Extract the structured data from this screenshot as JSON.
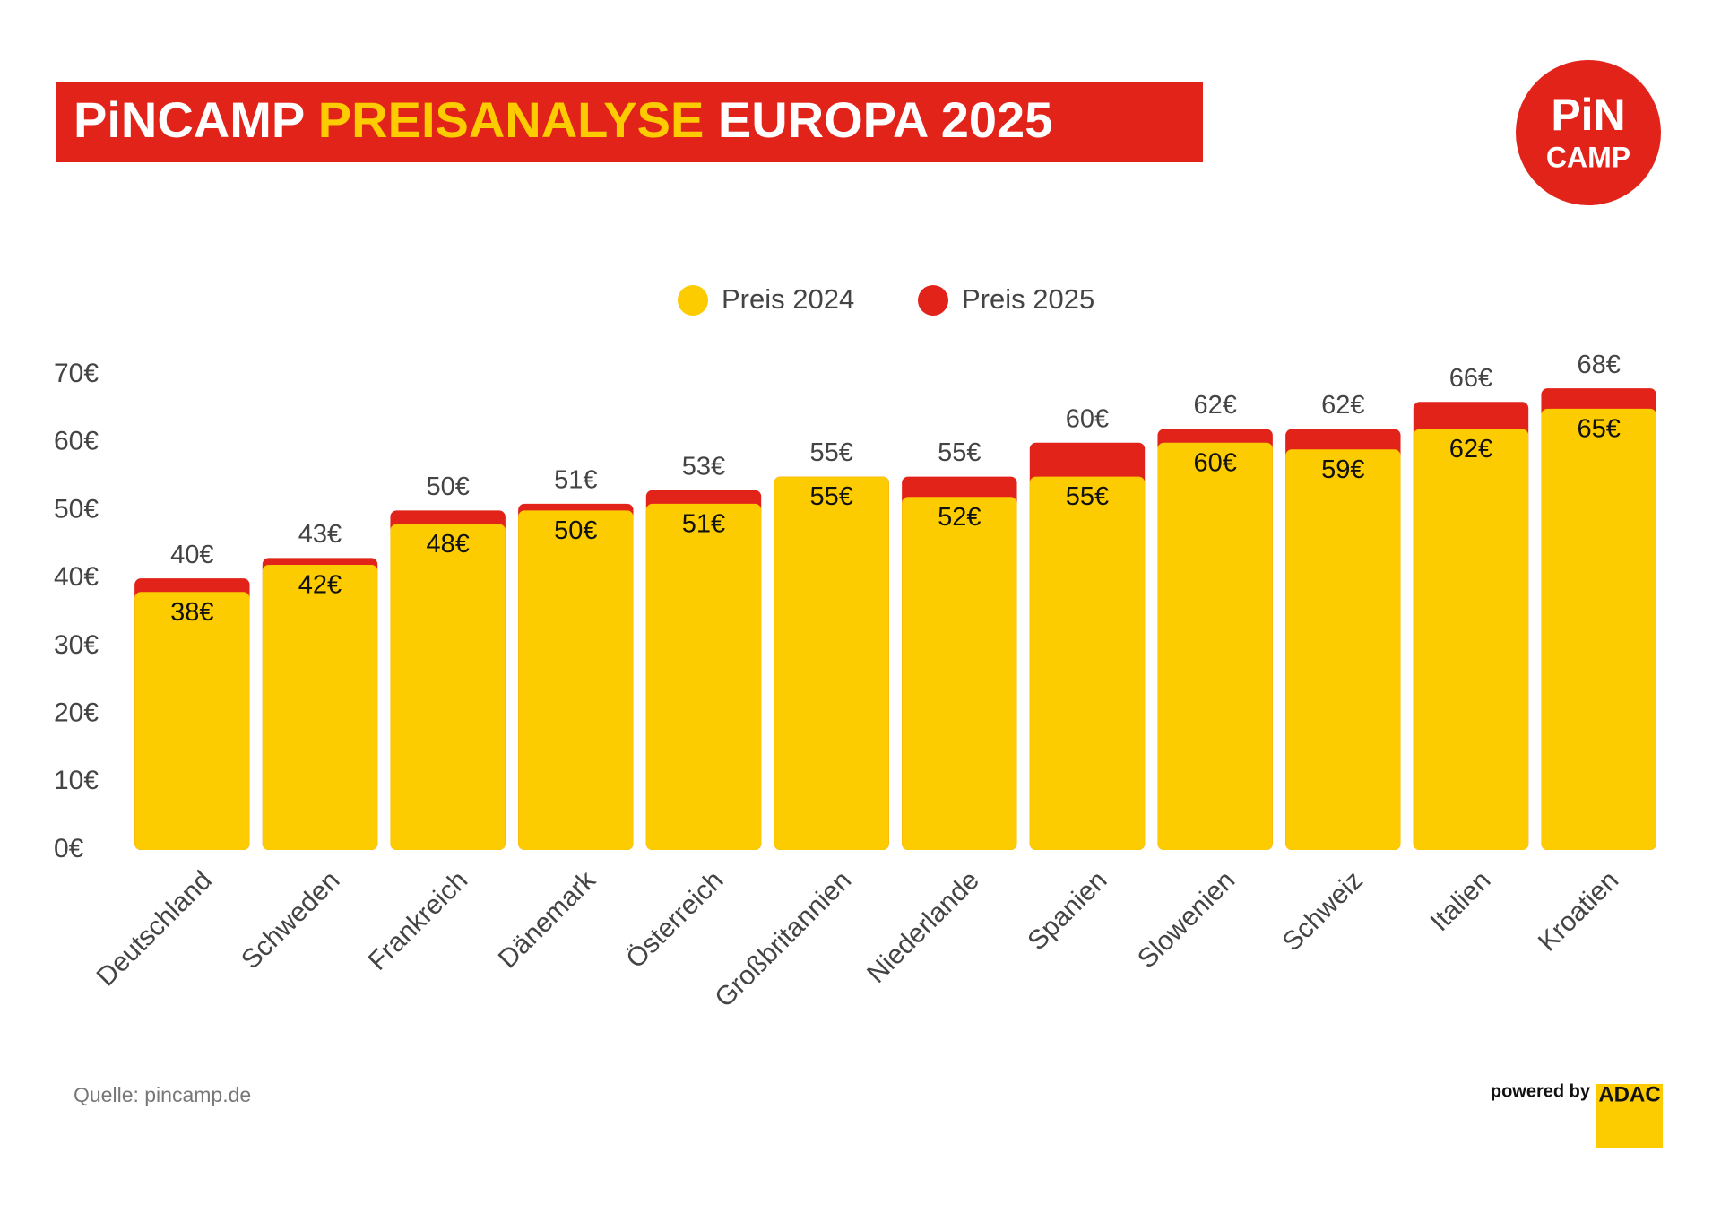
{
  "chart_data": {
    "type": "overlay-bar",
    "title_parts": [
      "PiNCAMP",
      "PREISANALYSE",
      "EUROPA 2025"
    ],
    "categories": [
      "Deutschland",
      "Schweden",
      "Frankreich",
      "Dänemark",
      "Österreich",
      "Großbritannien",
      "Niederlande",
      "Spanien",
      "Slowenien",
      "Schweiz",
      "Italien",
      "Kroatien"
    ],
    "series": [
      {
        "name": "Preis 2024",
        "color": "#fccc00",
        "values": [
          38,
          42,
          48,
          50,
          51,
          55,
          52,
          55,
          60,
          59,
          62,
          65
        ],
        "value_labels": [
          "38€",
          "42€",
          "48€",
          "50€",
          "51€",
          "55€",
          "52€",
          "55€",
          "60€",
          "59€",
          "62€",
          "65€"
        ]
      },
      {
        "name": "Preis 2025",
        "color": "#e2231a",
        "values": [
          40,
          43,
          50,
          51,
          53,
          55,
          55,
          60,
          62,
          62,
          66,
          68
        ],
        "value_labels": [
          "40€",
          "43€",
          "50€",
          "51€",
          "53€",
          "55€",
          "55€",
          "60€",
          "62€",
          "62€",
          "66€",
          "68€"
        ]
      }
    ],
    "ylim": [
      0,
      70
    ],
    "yticks": [
      {
        "value": 0,
        "label": "0€"
      },
      {
        "value": 10,
        "label": "10€"
      },
      {
        "value": 20,
        "label": "20€"
      },
      {
        "value": 30,
        "label": "30€"
      },
      {
        "value": 40,
        "label": "40€"
      },
      {
        "value": 50,
        "label": "50€"
      },
      {
        "value": 60,
        "label": "60€"
      },
      {
        "value": 70,
        "label": "70€"
      }
    ],
    "grid": false,
    "legend": "top"
  },
  "logo": [
    "PiN",
    "CAMP"
  ],
  "source": "Quelle: pincamp.de",
  "footer": {
    "powered_by": "powered by",
    "brand": "ADAC"
  }
}
